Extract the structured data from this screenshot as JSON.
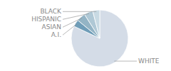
{
  "chart_data": {
    "type": "pie",
    "categories": [
      "WHITE",
      "A.I.",
      "ASIAN",
      "HISPANIC",
      "BLACK"
    ],
    "values": [
      82,
      4,
      5,
      5,
      4
    ],
    "colors": [
      "#d4dce7",
      "#6f9db8",
      "#93b4c5",
      "#afc8d5",
      "#c8dae3"
    ]
  }
}
